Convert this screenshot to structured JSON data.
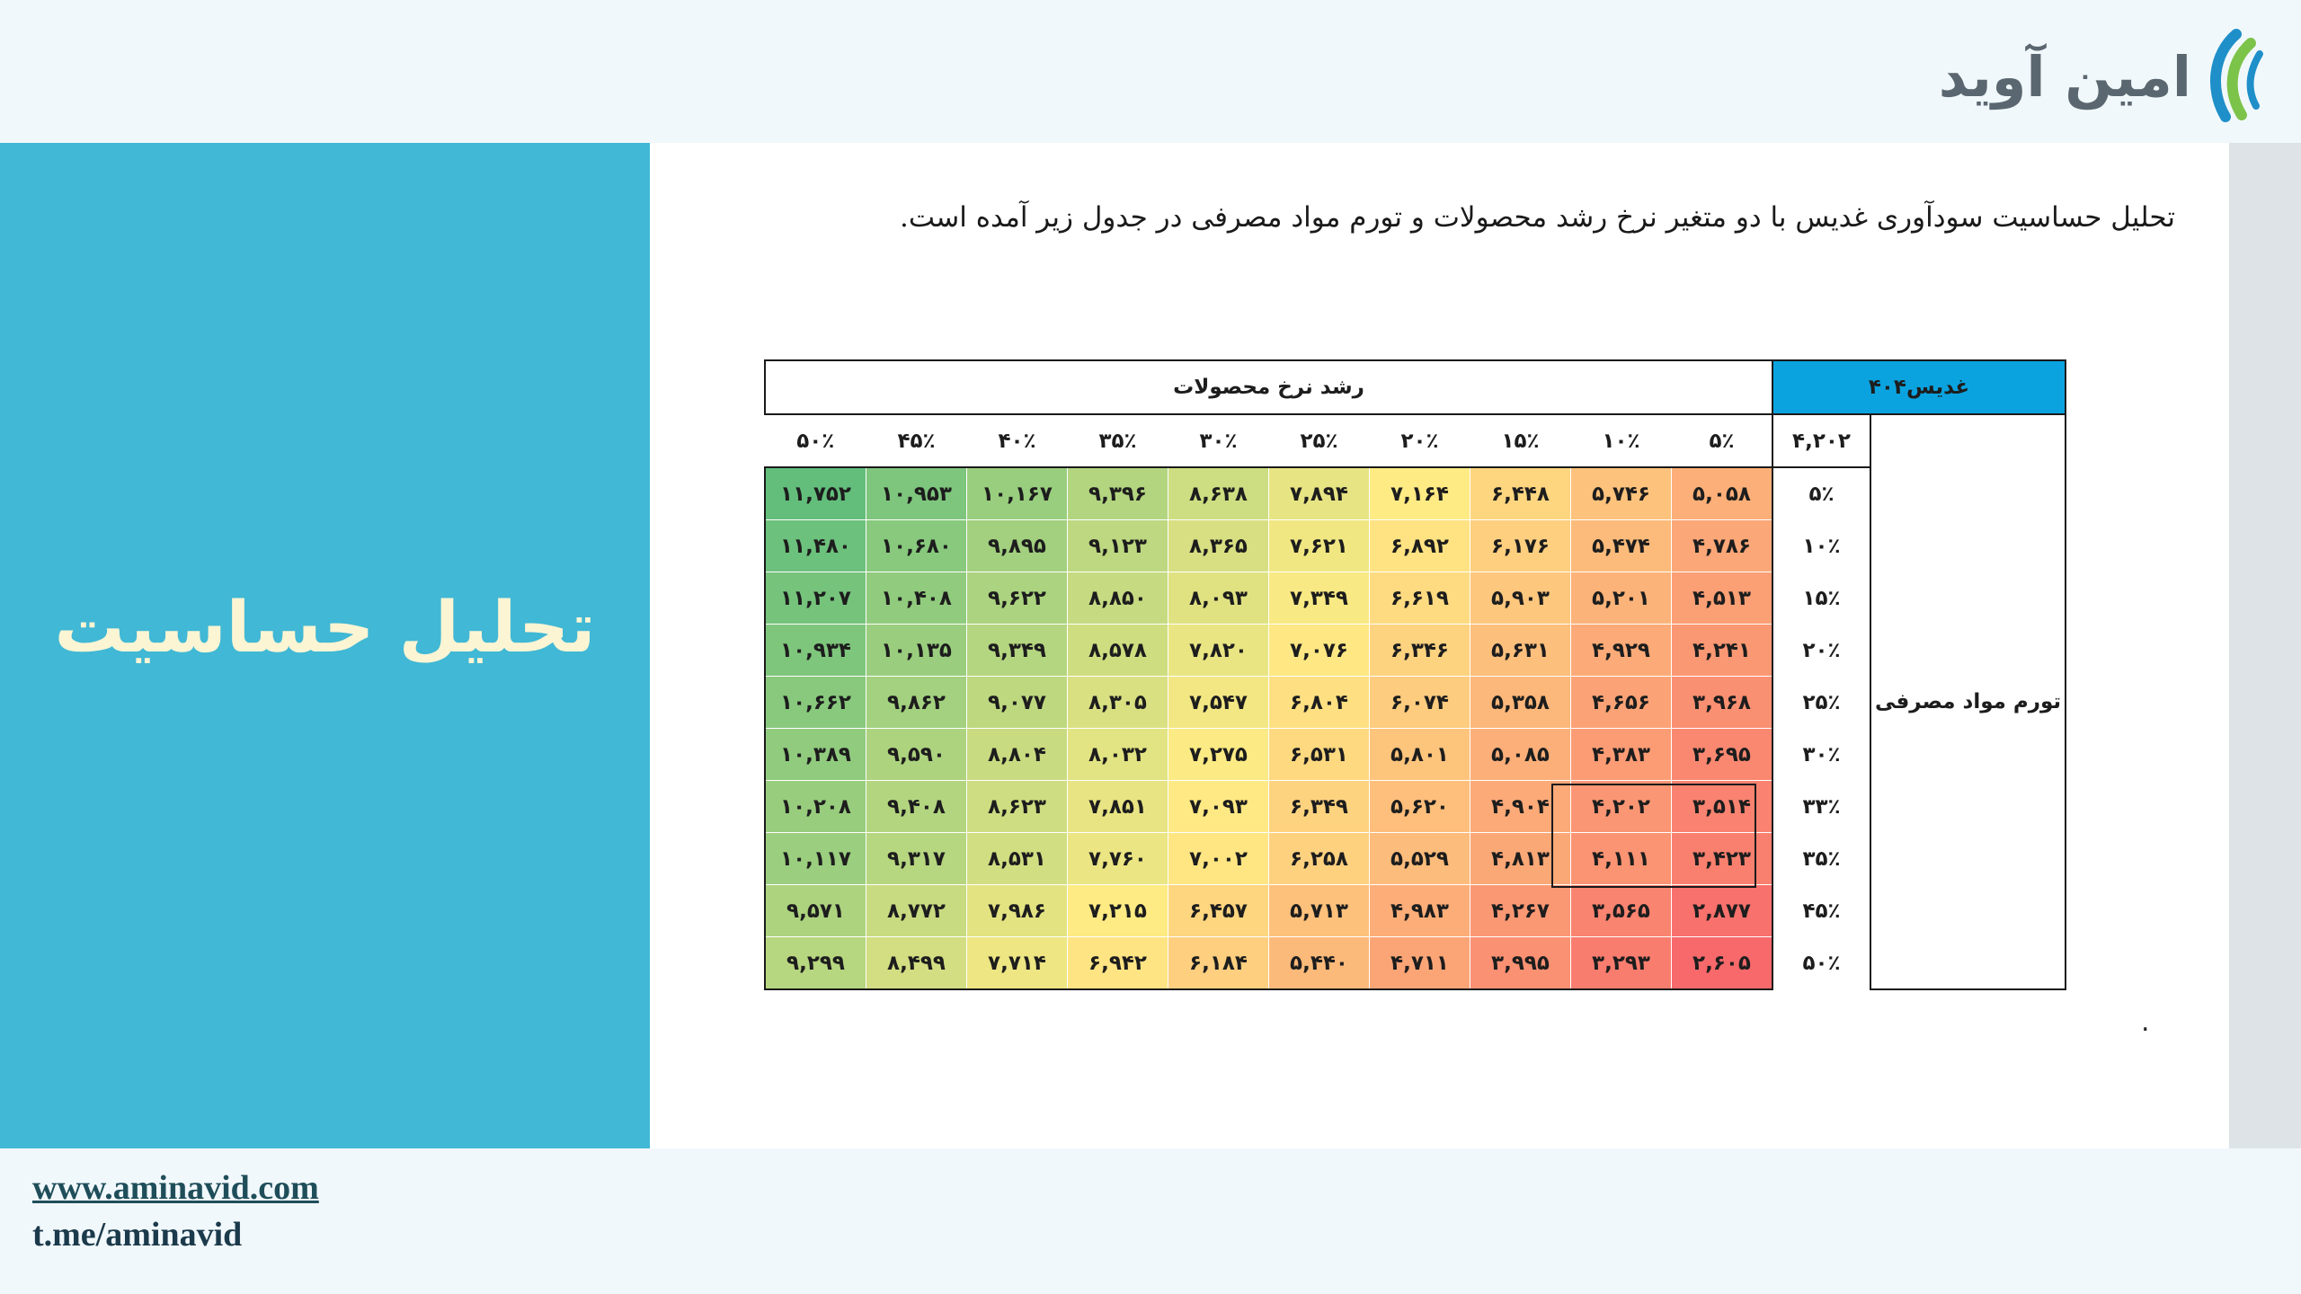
{
  "brand": {
    "logo_text": "امین آوید"
  },
  "left_panel": {
    "title": "تحلیل حساسیت"
  },
  "intro_text": "تحلیل حساسیت سودآوری غدیس با دو متغیر نرخ رشد محصولات و تورم مواد مصرفی در جدول زیر آمده است.",
  "trailing_dot": ".",
  "table": {
    "corner_label": "غدیس۴۰۴",
    "growth_header": "رشد نرخ محصولات",
    "base_value": "۴,۲۰۲",
    "inflation_label": "تورم مواد مصرفی",
    "columns": [
      "۵٪",
      "۱۰٪",
      "۱۵٪",
      "۲۰٪",
      "۲۵٪",
      "۳۰٪",
      "۳۵٪",
      "۴۰٪",
      "۴۵٪",
      "۵۰٪"
    ],
    "rows": [
      {
        "label": "۵٪",
        "values": [
          "۵,۰۵۸",
          "۵,۷۴۶",
          "۶,۴۴۸",
          "۷,۱۶۴",
          "۷,۸۹۴",
          "۸,۶۳۸",
          "۹,۳۹۶",
          "۱۰,۱۶۷",
          "۱۰,۹۵۳",
          "۱۱,۷۵۲"
        ]
      },
      {
        "label": "۱۰٪",
        "values": [
          "۴,۷۸۶",
          "۵,۴۷۴",
          "۶,۱۷۶",
          "۶,۸۹۲",
          "۷,۶۲۱",
          "۸,۳۶۵",
          "۹,۱۲۳",
          "۹,۸۹۵",
          "۱۰,۶۸۰",
          "۱۱,۴۸۰"
        ]
      },
      {
        "label": "۱۵٪",
        "values": [
          "۴,۵۱۳",
          "۵,۲۰۱",
          "۵,۹۰۳",
          "۶,۶۱۹",
          "۷,۳۴۹",
          "۸,۰۹۳",
          "۸,۸۵۰",
          "۹,۶۲۲",
          "۱۰,۴۰۸",
          "۱۱,۲۰۷"
        ]
      },
      {
        "label": "۲۰٪",
        "values": [
          "۴,۲۴۱",
          "۴,۹۲۹",
          "۵,۶۳۱",
          "۶,۳۴۶",
          "۷,۰۷۶",
          "۷,۸۲۰",
          "۸,۵۷۸",
          "۹,۳۴۹",
          "۱۰,۱۳۵",
          "۱۰,۹۳۴"
        ]
      },
      {
        "label": "۲۵٪",
        "values": [
          "۳,۹۶۸",
          "۴,۶۵۶",
          "۵,۳۵۸",
          "۶,۰۷۴",
          "۶,۸۰۴",
          "۷,۵۴۷",
          "۸,۳۰۵",
          "۹,۰۷۷",
          "۹,۸۶۲",
          "۱۰,۶۶۲"
        ]
      },
      {
        "label": "۳۰٪",
        "values": [
          "۳,۶۹۵",
          "۴,۳۸۳",
          "۵,۰۸۵",
          "۵,۸۰۱",
          "۶,۵۳۱",
          "۷,۲۷۵",
          "۸,۰۳۲",
          "۸,۸۰۴",
          "۹,۵۹۰",
          "۱۰,۳۸۹"
        ]
      },
      {
        "label": "۳۳٪",
        "values": [
          "۳,۵۱۴",
          "۴,۲۰۲",
          "۴,۹۰۴",
          "۵,۶۲۰",
          "۶,۳۴۹",
          "۷,۰۹۳",
          "۷,۸۵۱",
          "۸,۶۲۳",
          "۹,۴۰۸",
          "۱۰,۲۰۸"
        ]
      },
      {
        "label": "۳۵٪",
        "values": [
          "۳,۴۲۳",
          "۴,۱۱۱",
          "۴,۸۱۳",
          "۵,۵۲۹",
          "۶,۲۵۸",
          "۷,۰۰۲",
          "۷,۷۶۰",
          "۸,۵۳۱",
          "۹,۳۱۷",
          "۱۰,۱۱۷"
        ]
      },
      {
        "label": "۴۵٪",
        "values": [
          "۲,۸۷۷",
          "۳,۵۶۵",
          "۴,۲۶۷",
          "۴,۹۸۳",
          "۵,۷۱۳",
          "۶,۴۵۷",
          "۷,۲۱۵",
          "۷,۹۸۶",
          "۸,۷۷۲",
          "۹,۵۷۱"
        ]
      },
      {
        "label": "۵۰٪",
        "values": [
          "۲,۶۰۵",
          "۳,۲۹۳",
          "۳,۹۹۵",
          "۴,۷۱۱",
          "۵,۴۴۰",
          "۶,۱۸۴",
          "۶,۹۴۲",
          "۷,۷۱۴",
          "۸,۴۹۹",
          "۹,۲۹۹"
        ]
      }
    ],
    "heat_values": [
      [
        5058,
        5746,
        6448,
        7164,
        7894,
        8638,
        9396,
        10167,
        10953,
        11752
      ],
      [
        4786,
        5474,
        6176,
        6892,
        7621,
        8365,
        9123,
        9895,
        10680,
        11480
      ],
      [
        4513,
        5201,
        5903,
        6619,
        7349,
        8093,
        8850,
        9622,
        10408,
        11207
      ],
      [
        4241,
        4929,
        5631,
        6346,
        7076,
        7820,
        8578,
        9349,
        10135,
        10934
      ],
      [
        3968,
        4656,
        5358,
        6074,
        6804,
        7547,
        8305,
        9077,
        9862,
        10662
      ],
      [
        3695,
        4383,
        5085,
        5801,
        6531,
        7275,
        8032,
        8804,
        9590,
        10389
      ],
      [
        3514,
        4202,
        4904,
        5620,
        6349,
        7093,
        7851,
        8623,
        9408,
        10208
      ],
      [
        3423,
        4111,
        4813,
        5529,
        6258,
        7002,
        7760,
        8531,
        9317,
        10117
      ],
      [
        2877,
        3565,
        4267,
        4983,
        5713,
        6457,
        7215,
        7986,
        8772,
        9571
      ],
      [
        2605,
        3293,
        3995,
        4711,
        5440,
        6184,
        6942,
        7714,
        8499,
        9299
      ]
    ],
    "color_scale": {
      "low": "#f8696b",
      "mid": "#ffeb84",
      "high": "#63be7b"
    }
  },
  "footer": {
    "website": "www.aminavid.com",
    "telegram": "t.me/aminavid"
  }
}
